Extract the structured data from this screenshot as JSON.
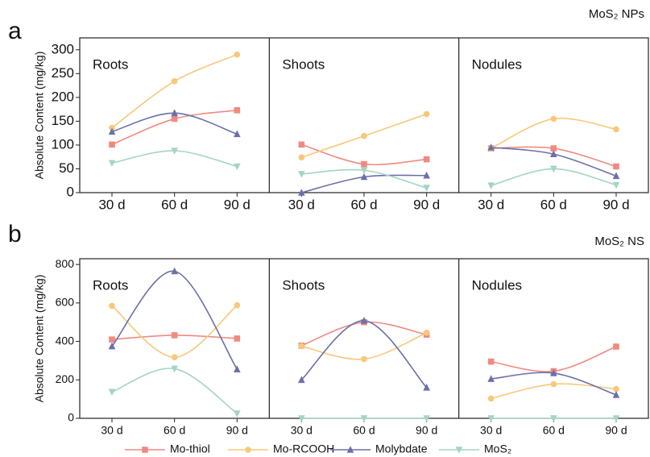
{
  "chart_data": [
    {
      "type": "line",
      "label": "a",
      "title": "MoS₂ NPs",
      "ylabel": "Absolute Content (mg/kg)",
      "ylim": [
        0,
        325
      ],
      "yticks": [
        0,
        50,
        100,
        150,
        200,
        250,
        300
      ],
      "panels": [
        {
          "title": "Roots",
          "categories": [
            "30 d",
            "60 d",
            "90 d"
          ],
          "series": [
            {
              "name": "Mo-thiol",
              "color": "#f08a80",
              "marker": "square",
              "values": [
                101,
                155,
                173
              ]
            },
            {
              "name": "Mo-RCOOH",
              "color": "#f7c87a",
              "marker": "circle",
              "values": [
                136,
                234,
                290
              ]
            },
            {
              "name": "Molybdate",
              "color": "#6b6faa",
              "marker": "triangle-up",
              "values": [
                128,
                167,
                123
              ]
            },
            {
              "name": "MoS₂",
              "color": "#a3d4c4",
              "marker": "triangle-down",
              "values": [
                62,
                88,
                55
              ]
            }
          ]
        },
        {
          "title": "Shoots",
          "categories": [
            "30 d",
            "60 d",
            "90 d"
          ],
          "series": [
            {
              "name": "Mo-thiol",
              "color": "#f08a80",
              "marker": "square",
              "values": [
                101,
                60,
                70
              ]
            },
            {
              "name": "Mo-RCOOH",
              "color": "#f7c87a",
              "marker": "circle",
              "values": [
                74,
                119,
                165
              ]
            },
            {
              "name": "Molybdate",
              "color": "#6b6faa",
              "marker": "triangle-up",
              "values": [
                0,
                33,
                36
              ]
            },
            {
              "name": "MoS₂",
              "color": "#a3d4c4",
              "marker": "triangle-down",
              "values": [
                39,
                47,
                10
              ]
            }
          ]
        },
        {
          "title": "Nodules",
          "categories": [
            "30 d",
            "60 d",
            "90 d"
          ],
          "series": [
            {
              "name": "Mo-thiol",
              "color": "#f08a80",
              "marker": "square",
              "values": [
                93,
                93,
                55
              ]
            },
            {
              "name": "Mo-RCOOH",
              "color": "#f7c87a",
              "marker": "circle",
              "values": [
                93,
                155,
                133
              ]
            },
            {
              "name": "Molybdate",
              "color": "#6b6faa",
              "marker": "triangle-up",
              "values": [
                95,
                81,
                35
              ]
            },
            {
              "name": "MoS₂",
              "color": "#a3d4c4",
              "marker": "triangle-down",
              "values": [
                15,
                50,
                16
              ]
            }
          ]
        }
      ]
    },
    {
      "type": "line",
      "label": "b",
      "title": "MoS₂ NS",
      "ylabel": "Absolute Content (mg/kg)",
      "ylim": [
        0,
        830
      ],
      "yticks": [
        0,
        200,
        400,
        600,
        800
      ],
      "panels": [
        {
          "title": "Roots",
          "categories": [
            "30 d",
            "60 d",
            "90 d"
          ],
          "series": [
            {
              "name": "Mo-thiol",
              "color": "#f08a80",
              "marker": "square",
              "values": [
                410,
                432,
                415
              ]
            },
            {
              "name": "Mo-RCOOH",
              "color": "#f7c87a",
              "marker": "circle",
              "values": [
                585,
                318,
                588
              ]
            },
            {
              "name": "Molybdate",
              "color": "#6b6faa",
              "marker": "triangle-up",
              "values": [
                375,
                765,
                255
              ]
            },
            {
              "name": "MoS₂",
              "color": "#a3d4c4",
              "marker": "triangle-down",
              "values": [
                137,
                258,
                25
              ]
            }
          ]
        },
        {
          "title": "Shoots",
          "categories": [
            "30 d",
            "60 d",
            "90 d"
          ],
          "series": [
            {
              "name": "Mo-thiol",
              "color": "#f08a80",
              "marker": "square",
              "values": [
                378,
                500,
                435
              ]
            },
            {
              "name": "Mo-RCOOH",
              "color": "#f7c87a",
              "marker": "circle",
              "values": [
                375,
                308,
                445
              ]
            },
            {
              "name": "Molybdate",
              "color": "#6b6faa",
              "marker": "triangle-up",
              "values": [
                200,
                508,
                160
              ]
            },
            {
              "name": "MoS₂",
              "color": "#a3d4c4",
              "marker": "triangle-down",
              "values": [
                0,
                0,
                0
              ]
            }
          ]
        },
        {
          "title": "Nodules",
          "categories": [
            "30 d",
            "60 d",
            "90 d"
          ],
          "series": [
            {
              "name": "Mo-thiol",
              "color": "#f08a80",
              "marker": "square",
              "values": [
                295,
                245,
                373
              ]
            },
            {
              "name": "Mo-RCOOH",
              "color": "#f7c87a",
              "marker": "circle",
              "values": [
                103,
                178,
                153
              ]
            },
            {
              "name": "Molybdate",
              "color": "#6b6faa",
              "marker": "triangle-up",
              "values": [
                205,
                235,
                122
              ]
            },
            {
              "name": "MoS₂",
              "color": "#a3d4c4",
              "marker": "triangle-down",
              "values": [
                0,
                0,
                0
              ]
            }
          ]
        }
      ]
    }
  ]
}
